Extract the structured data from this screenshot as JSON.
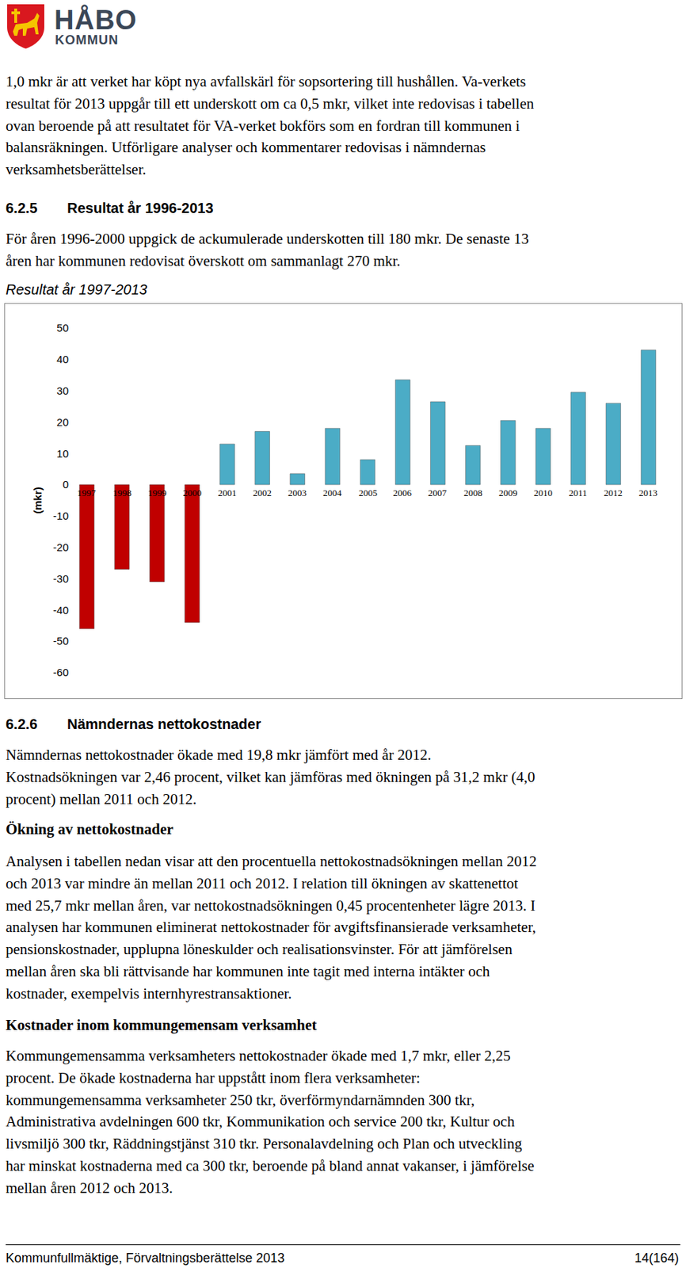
{
  "header": {
    "logo_line1": "HÅBO",
    "logo_line2": "KOMMUN"
  },
  "intro": {
    "lines": [
      "1,0 mkr är att verket har köpt nya avfallskärl för sopsortering till hushållen. Va-verkets",
      "resultat för 2013 uppgår till ett underskott om ca 0,5 mkr, vilket inte redovisas i tabellen",
      "ovan beroende på att resultatet för VA-verket bokförs som en fordran till kommunen i",
      "balansräkningen. Utförligare analyser och kommentarer redovisas i nämndernas",
      "verksamhetsberättelser."
    ]
  },
  "section_625": {
    "number": "6.2.5",
    "title": "Resultat år 1996-2013",
    "lines": [
      "För åren 1996-2000 uppgick de ackumulerade underskotten till 180 mkr. De senaste 13",
      "åren har kommunen redovisat överskott om sammanlagt 270 mkr."
    ]
  },
  "chart_data": {
    "type": "bar",
    "title": "Resultat år 1997-2013",
    "y_label": "(mkr)",
    "categories": [
      "1997",
      "1998",
      "1999",
      "2000",
      "2001",
      "2002",
      "2003",
      "2004",
      "2005",
      "2006",
      "2007",
      "2008",
      "2009",
      "2010",
      "2011",
      "2012",
      "2013"
    ],
    "values": [
      -46,
      -27,
      -31,
      -44,
      13,
      17,
      3.5,
      18,
      8,
      33.5,
      26.5,
      12.5,
      20.5,
      18,
      29.5,
      26,
      43
    ],
    "colors": [
      "#c00000",
      "#c00000",
      "#c00000",
      "#c00000",
      "#4bacc6",
      "#4bacc6",
      "#4bacc6",
      "#4bacc6",
      "#4bacc6",
      "#4bacc6",
      "#4bacc6",
      "#4bacc6",
      "#4bacc6",
      "#4bacc6",
      "#4bacc6",
      "#4bacc6",
      "#4bacc6"
    ],
    "ylim": [
      -60,
      50
    ],
    "yticks": [
      -60,
      -50,
      -40,
      -30,
      -20,
      -10,
      0,
      10,
      20,
      30,
      40,
      50
    ],
    "grid": false
  },
  "section_626": {
    "number": "6.2.6",
    "title": "Nämndernas nettokostnader",
    "lines": [
      "Nämndernas nettokostnader ökade med 19,8 mkr jämfört med år 2012.",
      "Kostnadsökningen var 2,46 procent, vilket kan jämföras med ökningen på 31,2 mkr (4,0",
      "procent) mellan 2011 och 2012."
    ]
  },
  "subsection_1": {
    "title": "Ökning av nettokostnader",
    "lines": [
      "Analysen i tabellen nedan visar att den procentuella nettokostnadsökningen mellan 2012",
      "och 2013 var mindre än mellan 2011 och 2012. I relation till ökningen av skattenettot",
      "med 25,7 mkr mellan åren, var nettokostnadsökningen 0,45 procentenheter lägre 2013. I",
      "analysen har kommunen eliminerat nettokostnader för avgiftsfinansierade verksamheter,",
      "pensionskostnader, upplupna löneskulder och realisationsvinster. För att jämförelsen",
      "mellan åren ska bli rättvisande har kommunen inte tagit med interna intäkter och",
      "kostnader, exempelvis internhyrestransaktioner."
    ]
  },
  "subsection_2": {
    "title": "Kostnader inom kommungemensam verksamhet",
    "lines": [
      "Kommungemensamma verksamheters nettokostnader ökade med 1,7 mkr, eller 2,25",
      "procent. De ökade kostnaderna har uppstått inom flera verksamheter:",
      "kommungemensamma verksamheter 250 tkr, överförmyndarnämnden 300 tkr,",
      "Administrativa avdelningen 600 tkr, Kommunikation och service 200 tkr, Kultur och",
      "livsmiljö 300 tkr, Räddningstjänst 310 tkr. Personalavdelning och Plan och utveckling",
      "har minskat kostnaderna med ca 300 tkr, beroende på bland annat vakanser, i jämförelse",
      "mellan åren 2012 och 2013."
    ]
  },
  "footer": {
    "left": "Kommunfullmäktige, Förvaltningsberättelse 2013",
    "right": "14(164)"
  }
}
